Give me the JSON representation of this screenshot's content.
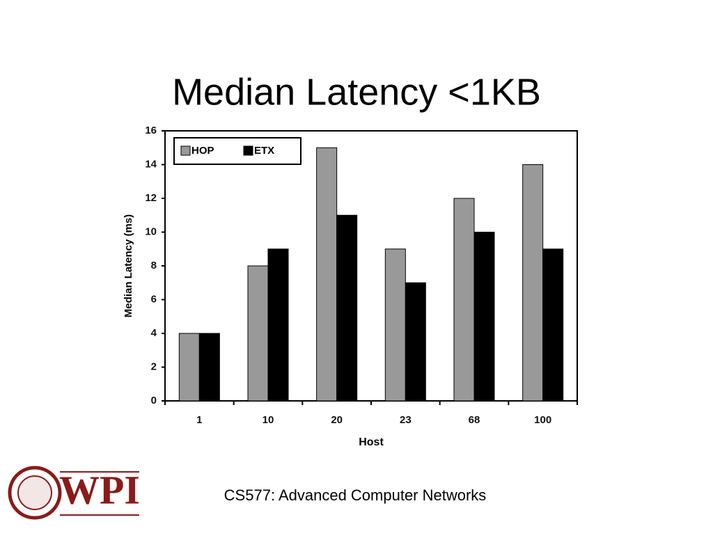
{
  "chart_data": {
    "type": "bar",
    "title": "Median Latency <1KB",
    "y_label": "Median Latency (ms)",
    "x_label": "Host",
    "categories": [
      "1",
      "10",
      "20",
      "23",
      "68",
      "100"
    ],
    "series": [
      {
        "name": "HOP",
        "color": "#999999",
        "values": [
          4,
          8,
          15,
          9,
          12,
          14
        ]
      },
      {
        "name": "ETX",
        "color": "#000000",
        "values": [
          4,
          9,
          11,
          7,
          10,
          9
        ]
      }
    ],
    "ylim": [
      0,
      16
    ],
    "yticks": [
      0,
      2,
      4,
      6,
      8,
      10,
      12,
      14,
      16
    ],
    "grid": false,
    "legend": "upper left"
  },
  "footer": "CS577: Advanced Computer Networks",
  "logo": {
    "text": "WPI"
  }
}
